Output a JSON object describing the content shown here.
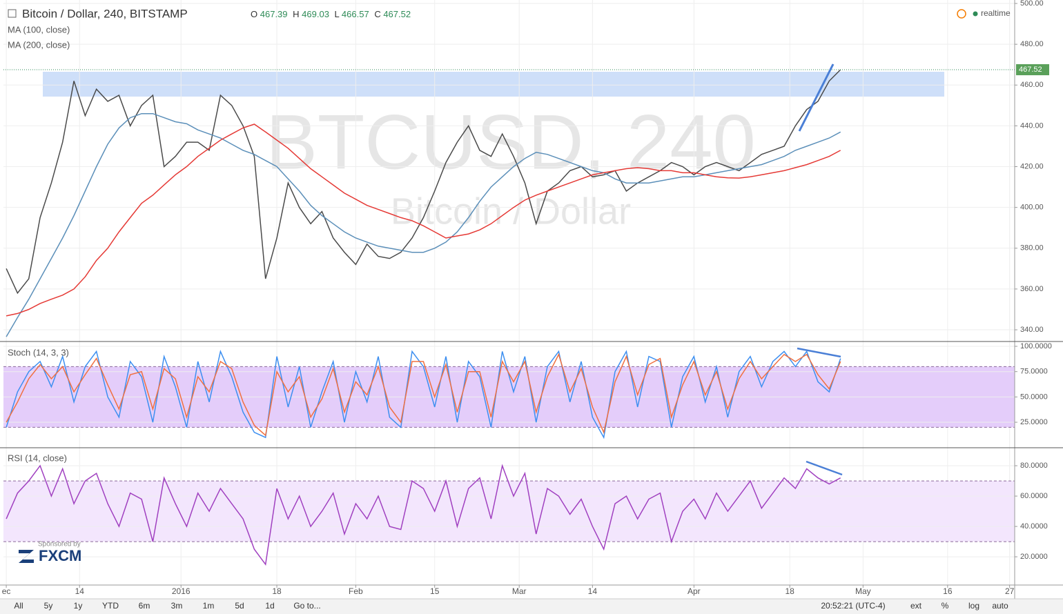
{
  "header": {
    "title": "Bitcoin / Dollar, 240, BITSTAMP",
    "ohlc": [
      {
        "label": "O",
        "value": 467.39
      },
      {
        "label": "H",
        "value": 469.03
      },
      {
        "label": "L",
        "value": 466.57
      },
      {
        "label": "C",
        "value": 467.52
      }
    ],
    "status": "realtime"
  },
  "watermark": {
    "symbol": "BTCUSD, 240",
    "name": "Bitcoin / Dollar"
  },
  "sponsor": {
    "label": "Sponsored by",
    "brand": "FXCM"
  },
  "toolbar": {
    "ranges": [
      "All",
      "5y",
      "1y",
      "YTD",
      "6m",
      "3m",
      "1m",
      "5d",
      "1d",
      "Go to..."
    ],
    "time": "20:52:21 (UTC-4)",
    "options": [
      "ext",
      "%",
      "log",
      "auto"
    ]
  },
  "chart_data": [
    {
      "type": "line",
      "x": [
        -31,
        -29,
        -27,
        -25,
        -23,
        -21,
        -19,
        -17,
        -15,
        -13,
        -11,
        -9,
        -7,
        -5,
        -3,
        -1,
        1,
        3,
        5,
        7,
        9,
        11,
        13,
        15,
        17,
        19,
        21,
        23,
        25,
        27,
        29,
        31,
        33,
        35,
        37,
        39,
        41,
        43,
        45,
        47,
        49,
        51,
        53,
        55,
        57,
        59,
        61,
        63,
        65,
        67,
        69,
        71,
        73,
        75,
        77,
        79,
        81,
        83,
        85,
        87,
        89,
        91,
        93,
        95,
        97,
        99,
        101,
        103,
        105,
        107,
        109,
        111,
        113,
        115,
        117
      ],
      "xlim": [
        -31.5,
        147.9
      ],
      "xticks": [
        {
          "value": -31,
          "label": "ec"
        },
        {
          "value": -18,
          "label": "14"
        },
        {
          "value": 0,
          "label": "2016"
        },
        {
          "value": 17,
          "label": "18"
        },
        {
          "value": 31,
          "label": "Feb"
        },
        {
          "value": 45,
          "label": "15"
        },
        {
          "value": 60,
          "label": "Mar"
        },
        {
          "value": 73,
          "label": "14"
        },
        {
          "value": 91,
          "label": "Apr"
        },
        {
          "value": 108,
          "label": "18"
        },
        {
          "value": 121,
          "label": "May"
        },
        {
          "value": 136,
          "label": "16"
        },
        {
          "value": 147,
          "label": "27"
        }
      ],
      "ylim": [
        334.6,
        501.7
      ],
      "yticks": [
        {
          "value": 340,
          "label": "340.00"
        },
        {
          "value": 360,
          "label": "360.00"
        },
        {
          "value": 380,
          "label": "380.00"
        },
        {
          "value": 400,
          "label": "400.00"
        },
        {
          "value": 420,
          "label": "420.00"
        },
        {
          "value": 440,
          "label": "440.00"
        },
        {
          "value": 460,
          "label": "460.00"
        },
        {
          "value": 480,
          "label": "480.00"
        },
        {
          "value": 500,
          "label": "500.00"
        }
      ],
      "grid": true,
      "series": [
        {
          "color": "#4a4a4a",
          "values": [
            370,
            358,
            365,
            395,
            412,
            432,
            462,
            445,
            458,
            452,
            455,
            440,
            450,
            455,
            420,
            425,
            432,
            432,
            428,
            455,
            450,
            440,
            425,
            365,
            385,
            412,
            400,
            392,
            398,
            385,
            378,
            372,
            382,
            376,
            375,
            378,
            385,
            395,
            408,
            422,
            432,
            440,
            428,
            425,
            436,
            425,
            412,
            392,
            408,
            412,
            418,
            420,
            415,
            416,
            418,
            408,
            412,
            415,
            418,
            422,
            420,
            416,
            420,
            422,
            420,
            418,
            422,
            426,
            428,
            430,
            440,
            448,
            452,
            462,
            467.52
          ]
        },
        {
          "name": "MA (100, close)",
          "color": "#5b8fb9",
          "values": [
            336.6,
            346,
            355,
            365,
            375,
            385,
            396,
            408,
            420,
            431,
            439,
            444,
            446,
            446,
            444,
            442,
            441,
            438,
            436,
            434,
            431,
            428,
            426,
            423,
            420,
            414,
            408,
            401,
            396,
            392,
            388,
            385,
            383,
            381,
            380,
            379,
            378,
            378,
            380,
            383,
            388,
            395,
            403,
            410,
            415,
            420,
            424,
            427,
            426,
            424,
            422,
            420,
            418,
            417,
            414,
            412,
            412,
            412,
            413,
            414,
            415,
            415,
            416,
            417,
            418,
            419,
            420,
            421,
            423,
            425,
            428,
            430,
            432,
            434,
            437
          ]
        },
        {
          "name": "MA (200, close)",
          "color": "#e53935",
          "values": [
            346.8,
            348,
            350,
            352.9,
            355,
            357,
            360,
            366,
            374,
            380,
            388,
            395,
            402,
            406,
            411,
            416,
            420,
            425,
            429,
            433,
            436,
            439,
            440.8,
            437,
            433,
            429,
            424,
            419,
            415,
            411,
            407,
            404,
            401,
            399,
            397,
            395,
            393.5,
            391,
            388,
            385,
            386,
            387,
            389,
            392,
            396,
            400,
            403.6,
            406,
            408,
            410,
            412,
            414,
            416,
            417,
            418,
            419,
            419.5,
            419,
            418,
            418,
            417,
            417,
            416,
            415,
            414.5,
            414.4,
            415,
            416,
            417,
            418,
            419.5,
            421,
            423,
            425,
            428
          ]
        }
      ]
    },
    {
      "type": "line",
      "ylim": [
        0.5,
        104.1
      ],
      "yticks": [
        {
          "value": 25,
          "label": "25.0000"
        },
        {
          "value": 50,
          "label": "50.0000"
        },
        {
          "value": 75,
          "label": "75.0000"
        },
        {
          "value": 100,
          "label": "100.0000"
        }
      ],
      "band": [
        20,
        80
      ],
      "band_color": "#e4cdfa",
      "grid": true,
      "series": [
        {
          "name": "Stoch (14, 3, 3)",
          "color": "#3d8ff0",
          "values": [
            20,
            55,
            75,
            85,
            60,
            90,
            45,
            80,
            95,
            50,
            30,
            85,
            70,
            25,
            90,
            60,
            20,
            85,
            45,
            95,
            70,
            35,
            15,
            10,
            90,
            40,
            80,
            20,
            55,
            85,
            25,
            75,
            45,
            90,
            30,
            20,
            95,
            80,
            40,
            90,
            25,
            85,
            70,
            20,
            95,
            55,
            90,
            25,
            80,
            95,
            45,
            85,
            30,
            10,
            75,
            95,
            40,
            90,
            85,
            20,
            70,
            90,
            45,
            80,
            30,
            75,
            90,
            60,
            85,
            95,
            80,
            95,
            65,
            55,
            88
          ]
        },
        {
          "color": "#f07040",
          "values": [
            25,
            45,
            68,
            82,
            68,
            80,
            55,
            72,
            88,
            62,
            38,
            72,
            75,
            38,
            78,
            68,
            30,
            70,
            55,
            85,
            78,
            45,
            22,
            12,
            75,
            55,
            70,
            30,
            48,
            78,
            35,
            65,
            52,
            80,
            40,
            25,
            85,
            85,
            50,
            82,
            35,
            75,
            75,
            30,
            85,
            65,
            85,
            35,
            70,
            92,
            55,
            78,
            40,
            15,
            65,
            90,
            52,
            82,
            88,
            30,
            62,
            85,
            52,
            75,
            38,
            68,
            85,
            68,
            80,
            92,
            85,
            92,
            72,
            58,
            85
          ]
        }
      ]
    },
    {
      "type": "line",
      "ylim": [
        1.4,
        91.4
      ],
      "yticks": [
        {
          "value": 20,
          "label": "20.0000"
        },
        {
          "value": 40,
          "label": "40.0000"
        },
        {
          "value": 60,
          "label": "60.0000"
        },
        {
          "value": 80,
          "label": "80.0000"
        }
      ],
      "band": [
        30,
        70
      ],
      "band_color": "#f3e6fd",
      "grid": true,
      "series": [
        {
          "name": "RSI (14, close)",
          "color": "#a040c0",
          "values": [
            45,
            62,
            70,
            80,
            60,
            78,
            55,
            70,
            75,
            55,
            40,
            62,
            58,
            30,
            72,
            55,
            40,
            62,
            50,
            65,
            55,
            45,
            25,
            15,
            65,
            45,
            60,
            40,
            50,
            62,
            35,
            55,
            45,
            60,
            40,
            38,
            70,
            65,
            50,
            70,
            40,
            65,
            72,
            45,
            80,
            60,
            75,
            35,
            65,
            60,
            48,
            58,
            40,
            25,
            55,
            60,
            45,
            58,
            62,
            30,
            50,
            58,
            45,
            62,
            50,
            60,
            70,
            52,
            62,
            72,
            65,
            78,
            72,
            68,
            72
          ]
        }
      ]
    }
  ]
}
